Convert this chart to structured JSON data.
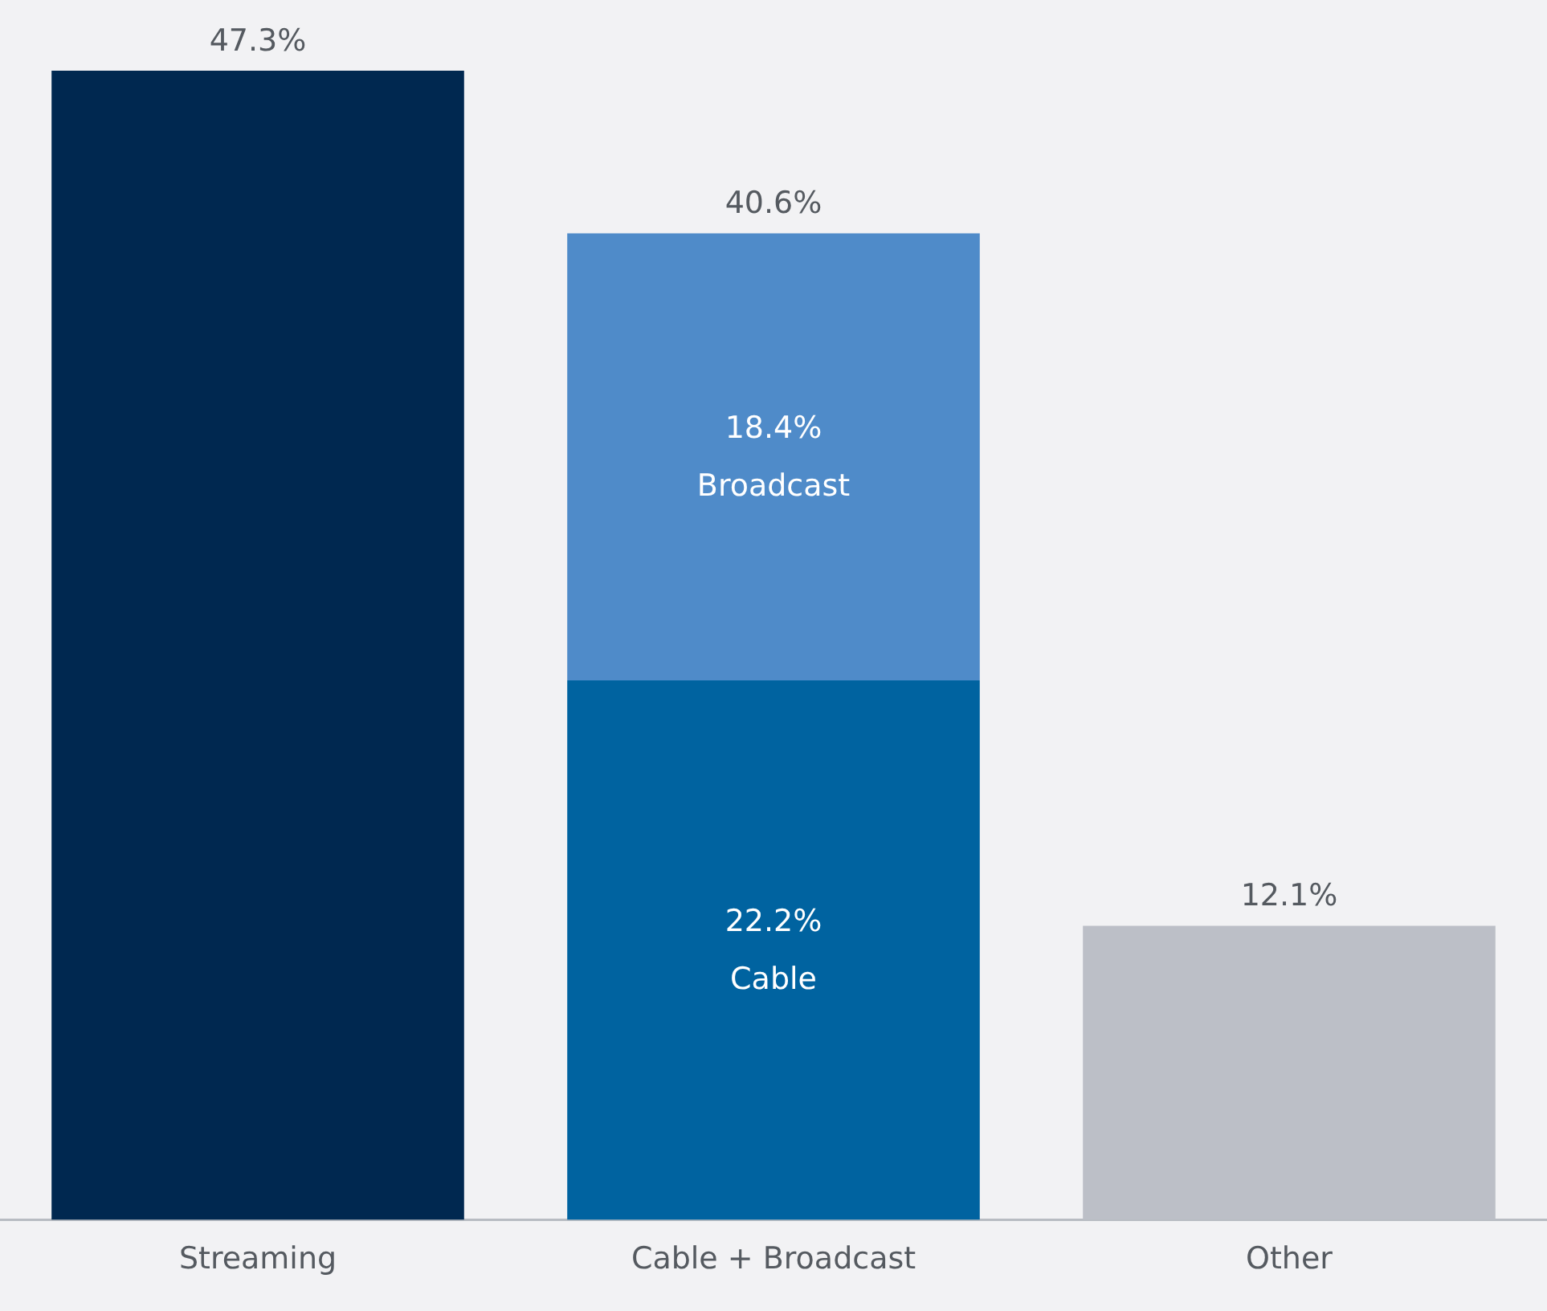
{
  "chart_data": {
    "type": "bar",
    "stacked": true,
    "grid": false,
    "legend": false,
    "tick_labels": "x",
    "categories": [
      "Streaming",
      "Cable + Broadcast",
      "Other"
    ],
    "series": [
      {
        "color": "#002850",
        "values": [
          47.3,
          null,
          null
        ]
      },
      {
        "name": "Cable",
        "color": "#0063a0",
        "values": [
          null,
          22.2,
          null
        ],
        "value_labels": [
          null,
          "22.2%",
          null
        ]
      },
      {
        "name": "Broadcast",
        "color": "#4f8bc9",
        "values": [
          null,
          18.4,
          null
        ],
        "value_labels": [
          null,
          "18.4%",
          null
        ]
      },
      {
        "color": "#bcbfc7",
        "values": [
          null,
          null,
          12.1
        ]
      }
    ],
    "totals": [
      "47.3%",
      "40.6%",
      "12.1%"
    ]
  }
}
